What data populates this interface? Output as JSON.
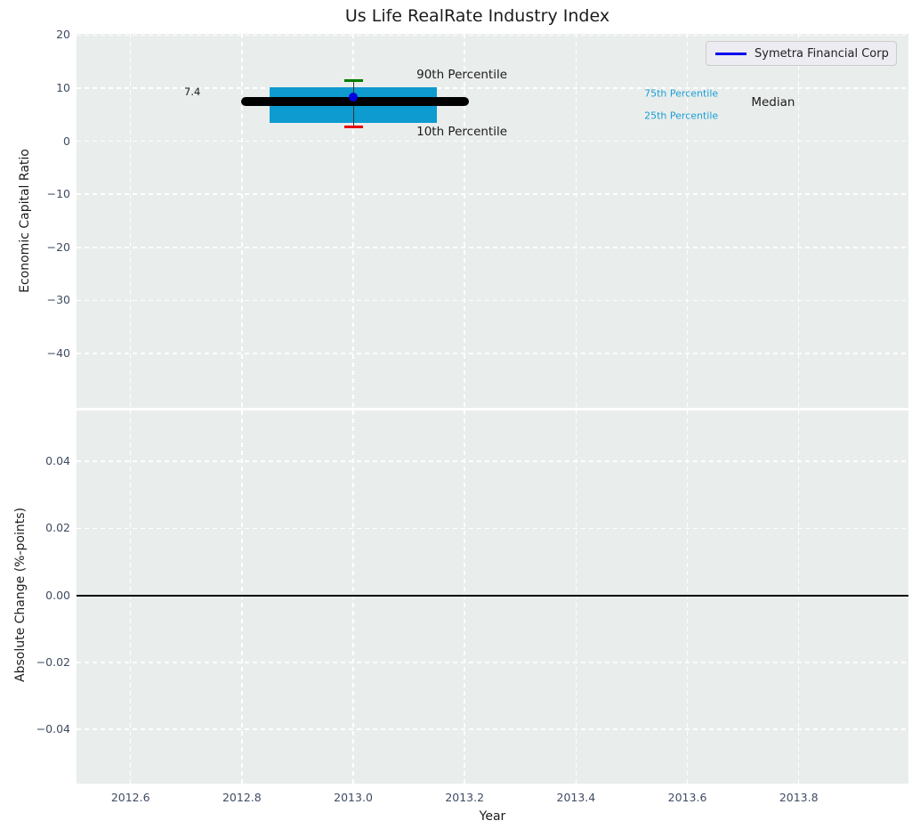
{
  "figure": {
    "title": "Us Life RealRate Industry Index",
    "plot_background": "#e9edec",
    "grid_color": "#ffffff",
    "tick_color": "#3f4c63",
    "text_color": "#1c1c1c"
  },
  "chart_data": [
    {
      "type": "boxplot",
      "panel": "top",
      "title": "Us Life RealRate Industry Index",
      "xlabel": "Year",
      "ylabel": "Economic Capital Ratio",
      "xlim": [
        2012.503,
        2013.997
      ],
      "ylim": [
        -50.24,
        20.23
      ],
      "grid": "white-dashed",
      "legend_position": "upper right",
      "xticks": [
        {
          "v": 2012.6,
          "label": "2012.6"
        },
        {
          "v": 2012.8,
          "label": "2012.8"
        },
        {
          "v": 2013.0,
          "label": "2013.0"
        },
        {
          "v": 2013.2,
          "label": "2013.2"
        },
        {
          "v": 2013.4,
          "label": "2013.4"
        },
        {
          "v": 2013.6,
          "label": "2013.6"
        },
        {
          "v": 2013.8,
          "label": "2013.8"
        }
      ],
      "yticks": [
        {
          "v": 20,
          "label": "20"
        },
        {
          "v": 10,
          "label": "10"
        },
        {
          "v": 0,
          "label": "0"
        },
        {
          "v": -10,
          "label": "−10"
        },
        {
          "v": -20,
          "label": "−20"
        },
        {
          "v": -30,
          "label": "−30"
        },
        {
          "v": -40,
          "label": "−40"
        }
      ],
      "box": {
        "x_center": 2013.0,
        "box_x_start": 2012.85,
        "box_x_end": 2013.15,
        "median": 7.4,
        "median_x_start": 2012.798,
        "median_x_end": 2013.207,
        "q1_25th_percentile": 3.4,
        "q3_75th_percentile": 10.1,
        "whisker_10th_percentile": 2.7,
        "whisker_90th_percentile": 11.4,
        "box_color": "#0d9bd0",
        "median_color": "#000000",
        "whisker_line_color": "#333333",
        "p90_cap_color": "#007d00",
        "p10_cap_color": "#e60000"
      },
      "point": {
        "name": "Symetra Financial Corp",
        "x": 2013.0,
        "y": 8.4,
        "color": "#0000dd"
      },
      "annotations": [
        {
          "id": "median-value",
          "text": "7.4",
          "x": 2012.711,
          "y": 9.33,
          "color": "#1c1c1c",
          "size": 11.5
        },
        {
          "id": "90th-percentile",
          "text": "90th Percentile",
          "x": 2013.195,
          "y": 12.43,
          "color": "#1c1c1c",
          "size": 13.5
        },
        {
          "id": "10th-percentile",
          "text": "10th Percentile",
          "x": 2013.195,
          "y": 1.77,
          "color": "#1c1c1c",
          "size": 13.5
        },
        {
          "id": "75th-percentile",
          "text": "75th Percentile",
          "x": 2013.589,
          "y": 9.07,
          "color": "#1b9fd4",
          "size": 11
        },
        {
          "id": "25th-percentile",
          "text": "25th Percentile",
          "x": 2013.589,
          "y": 4.71,
          "color": "#1b9fd4",
          "size": 11
        },
        {
          "id": "median-label",
          "text": "Median",
          "x": 2013.754,
          "y": 7.39,
          "color": "#1c1c1c",
          "size": 13.5
        }
      ],
      "legend": {
        "label": "Symetra Financial Corp",
        "line_color": "#0000ee"
      }
    },
    {
      "type": "line",
      "panel": "bottom",
      "xlabel": "Year",
      "ylabel": "Absolute Change (%-points)",
      "xlim": [
        2012.503,
        2013.997
      ],
      "ylim": [
        -0.0562,
        0.0552
      ],
      "grid": "white-dashed",
      "xticks": [
        {
          "v": 2012.6,
          "label": "2012.6"
        },
        {
          "v": 2012.8,
          "label": "2012.8"
        },
        {
          "v": 2013.0,
          "label": "2013.0"
        },
        {
          "v": 2013.2,
          "label": "2013.2"
        },
        {
          "v": 2013.4,
          "label": "2013.4"
        },
        {
          "v": 2013.6,
          "label": "2013.6"
        },
        {
          "v": 2013.8,
          "label": "2013.8"
        }
      ],
      "yticks": [
        {
          "v": 0.04,
          "label": "0.04"
        },
        {
          "v": 0.02,
          "label": "0.02"
        },
        {
          "v": 0.0,
          "label": "0.00"
        },
        {
          "v": -0.02,
          "label": "−0.02"
        },
        {
          "v": -0.04,
          "label": "−0.04"
        }
      ],
      "zero_line": {
        "y": 0.0,
        "color": "#000000"
      }
    }
  ]
}
